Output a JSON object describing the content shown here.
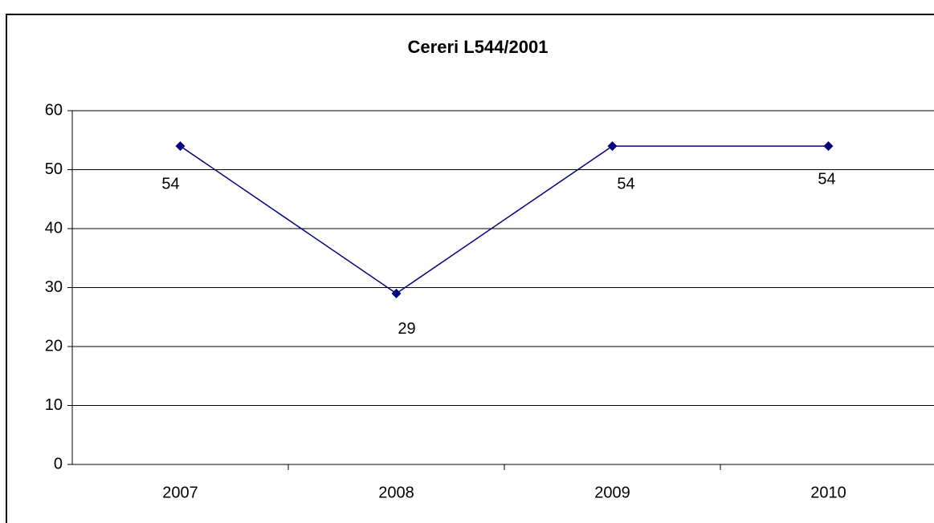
{
  "chart_data": {
    "type": "line",
    "title": "Cereri L544/2001",
    "categories": [
      "2007",
      "2008",
      "2009",
      "2010"
    ],
    "series": [
      {
        "name": "Cereri L544/2001",
        "color": "#000080",
        "values": [
          54,
          29,
          54,
          54
        ]
      }
    ],
    "ylim": [
      0,
      60
    ],
    "yticks": [
      0,
      10,
      20,
      30,
      40,
      50,
      60
    ],
    "grid": true
  }
}
